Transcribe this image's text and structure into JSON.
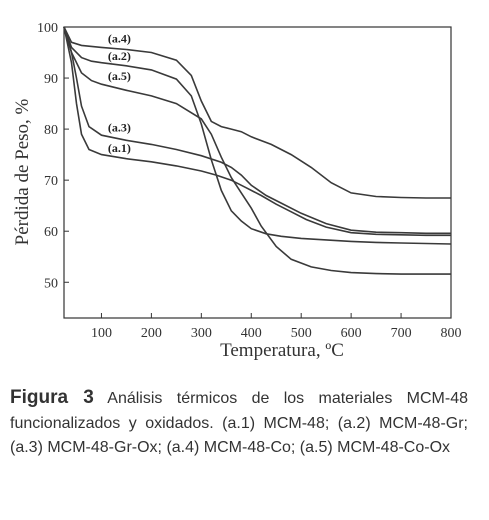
{
  "chart_data": {
    "type": "line",
    "title": "",
    "xlabel": "Temperatura, ºC",
    "ylabel": "Pérdida de Peso, %",
    "xlim": [
      25,
      800
    ],
    "ylim": [
      43,
      100
    ],
    "xticks": [
      "100",
      "200",
      "300",
      "400",
      "500",
      "600",
      "700",
      "800"
    ],
    "yticks": [
      "50",
      "60",
      "70",
      "80",
      "90",
      "100"
    ],
    "grid": false,
    "series": [
      {
        "name": "(a.1)",
        "x": [
          25,
          40,
          50,
          60,
          75,
          100,
          150,
          200,
          250,
          300,
          330,
          360,
          390,
          420,
          450,
          480,
          510,
          550,
          600,
          650,
          700,
          750,
          800
        ],
        "y": [
          100,
          93,
          85,
          79,
          76,
          75,
          74.2,
          73.6,
          72.8,
          71.8,
          71,
          70,
          68.5,
          67,
          65.3,
          63.8,
          62.3,
          60.8,
          59.7,
          59.4,
          59.3,
          59.2,
          59.2
        ]
      },
      {
        "name": "(a.2)",
        "x": [
          25,
          40,
          60,
          80,
          100,
          150,
          200,
          250,
          280,
          300,
          320,
          340,
          360,
          380,
          400,
          430,
          460,
          500,
          550,
          600,
          650,
          700,
          750,
          800
        ],
        "y": [
          100,
          96,
          94,
          93.3,
          93,
          92.4,
          91.6,
          89.8,
          86.5,
          81,
          74,
          68,
          64,
          62,
          60.5,
          59.5,
          59,
          58.6,
          58.3,
          58,
          57.8,
          57.7,
          57.6,
          57.5
        ]
      },
      {
        "name": "(a.3)",
        "x": [
          25,
          40,
          50,
          60,
          75,
          100,
          150,
          200,
          250,
          300,
          340,
          360,
          380,
          400,
          430,
          460,
          500,
          550,
          600,
          650,
          700,
          750,
          800
        ],
        "y": [
          100,
          95,
          90,
          84.5,
          80.5,
          78.8,
          77.8,
          77,
          76,
          74.8,
          73.5,
          72.5,
          71,
          69,
          67,
          65.5,
          63.5,
          61.5,
          60.2,
          59.8,
          59.7,
          59.6,
          59.6
        ]
      },
      {
        "name": "(a.4)",
        "x": [
          25,
          40,
          60,
          80,
          100,
          150,
          200,
          250,
          280,
          300,
          320,
          340,
          360,
          380,
          400,
          440,
          480,
          520,
          560,
          600,
          650,
          700,
          750,
          800
        ],
        "y": [
          100,
          97,
          96.4,
          96.2,
          96,
          95.6,
          95,
          93.5,
          90.5,
          85.5,
          81.5,
          80.5,
          80,
          79.5,
          78.5,
          77,
          75,
          72.5,
          69.5,
          67.5,
          66.8,
          66.6,
          66.5,
          66.5
        ]
      },
      {
        "name": "(a.5)",
        "x": [
          25,
          40,
          60,
          80,
          100,
          150,
          200,
          250,
          300,
          320,
          340,
          360,
          380,
          400,
          420,
          450,
          480,
          520,
          560,
          600,
          650,
          700,
          750,
          800
        ],
        "y": [
          100,
          95,
          91,
          89.5,
          88.8,
          87.6,
          86.5,
          85,
          82,
          79,
          74.5,
          70.5,
          67.5,
          64.5,
          61,
          57,
          54.5,
          53,
          52.3,
          51.9,
          51.7,
          51.6,
          51.6,
          51.6
        ]
      }
    ]
  },
  "caption": {
    "label": "Figura 3",
    "text": " Análisis térmicos de los materiales MCM-48 funcionalizados y oxidados. (a.1) MCM-48; (a.2) MCM-48-Gr; (a.3) MCM-48-Gr-Ox; (a.4) MCM-48-Co; (a.5) MCM-48-Co-Ox"
  }
}
